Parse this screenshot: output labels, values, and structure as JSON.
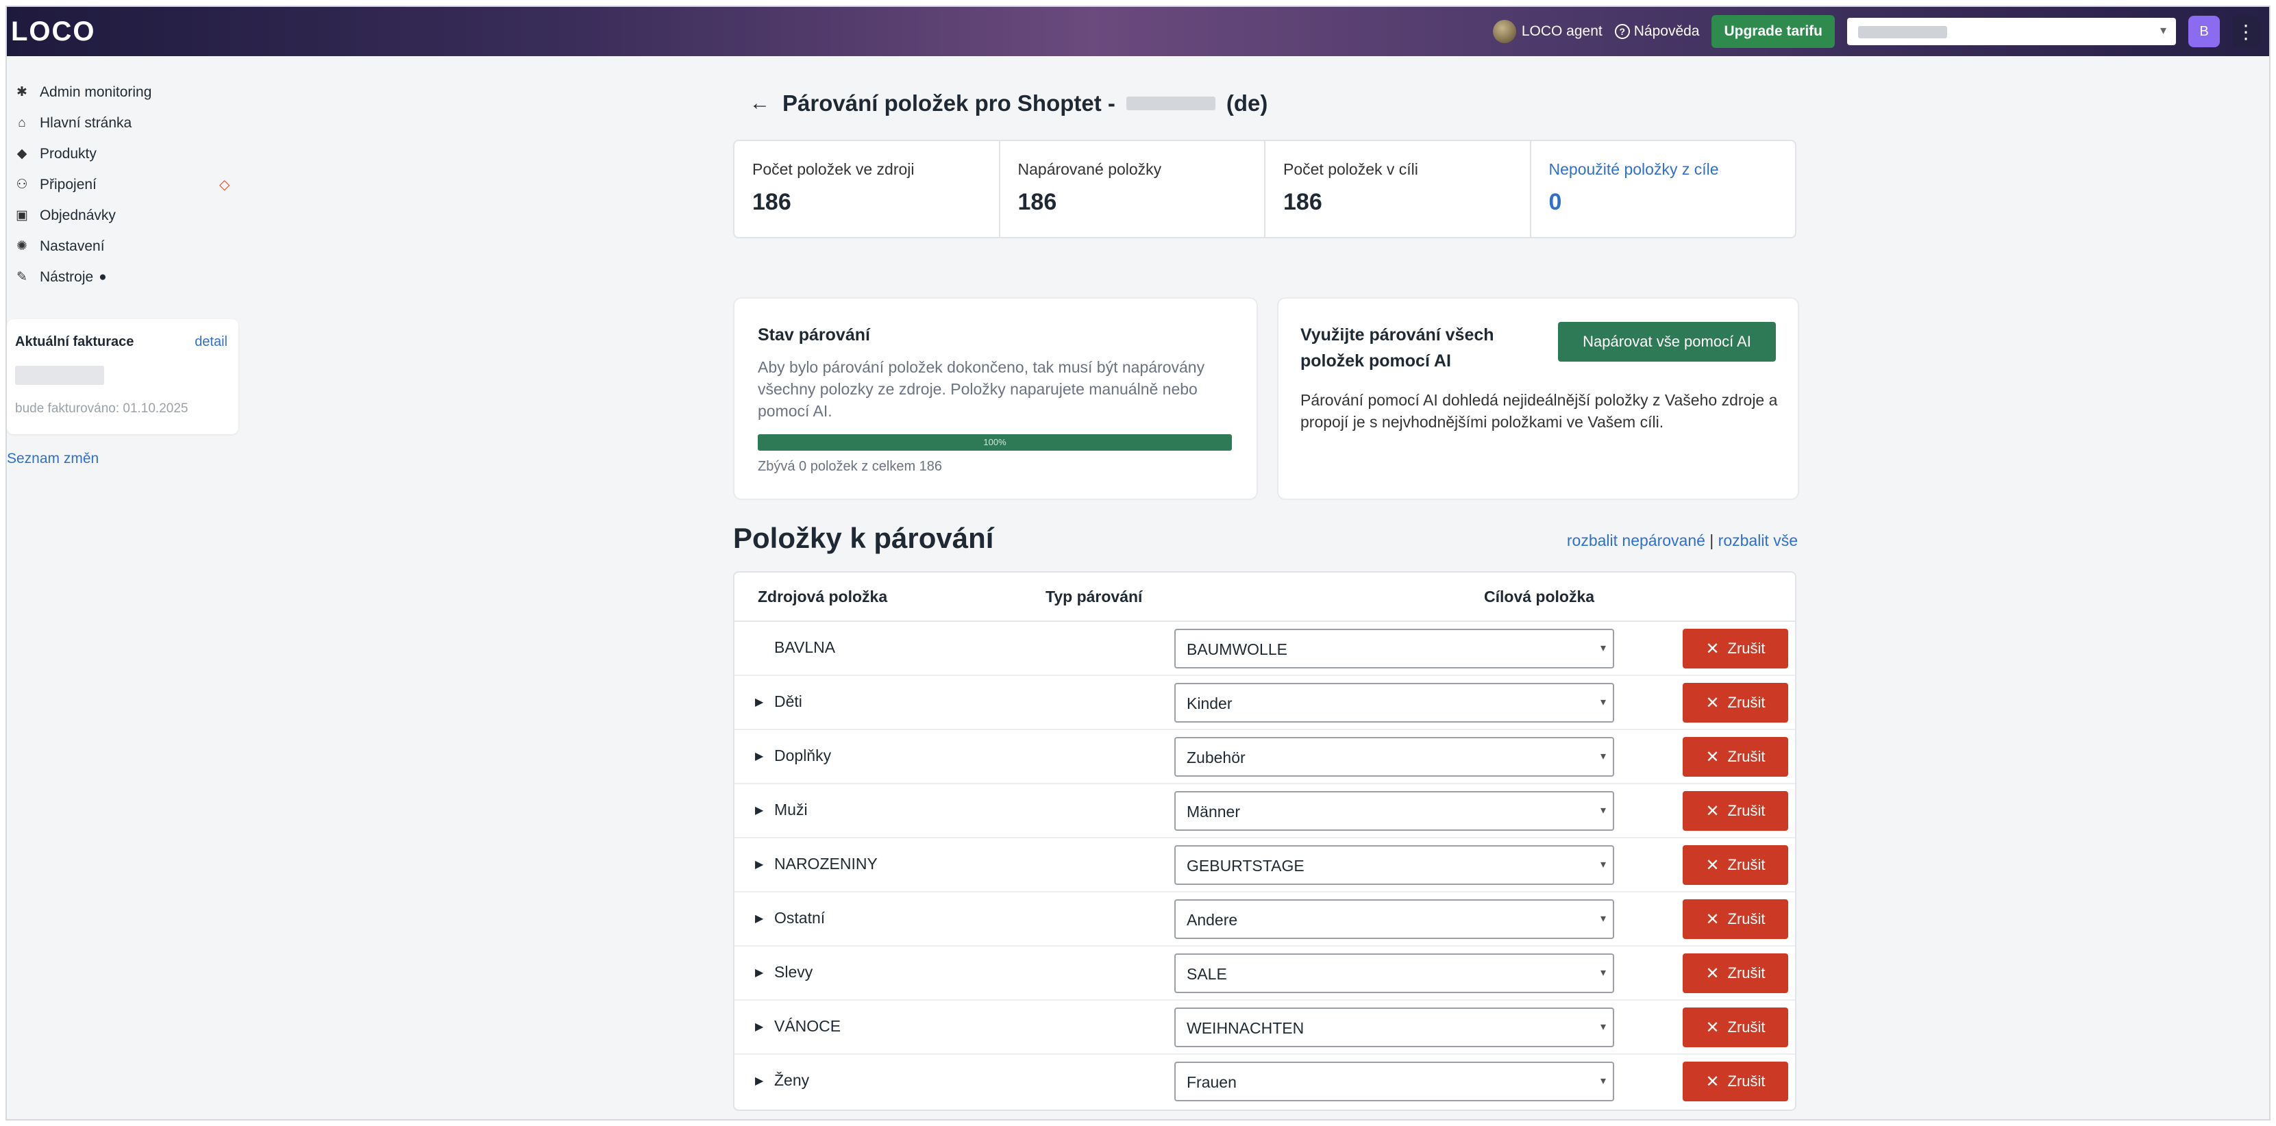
{
  "header": {
    "logo": "LOCO",
    "agent_label": "LOCO agent",
    "help_label": "Nápověda",
    "upgrade_label": "Upgrade tarifu",
    "avatar_initial": "B",
    "kebab": "⋮"
  },
  "sidebar": {
    "items": [
      {
        "label": "Admin monitoring",
        "icon": "bug-icon",
        "glyph": "✱"
      },
      {
        "label": "Hlavní stránka",
        "icon": "home-icon",
        "glyph": "⌂"
      },
      {
        "label": "Produkty",
        "icon": "tag-icon",
        "glyph": "◆"
      },
      {
        "label": "Připojení",
        "icon": "plug-icon",
        "glyph": "⚇"
      },
      {
        "label": "Objednávky",
        "icon": "inbox-icon",
        "glyph": "▣"
      },
      {
        "label": "Nastavení",
        "icon": "gear-icon",
        "glyph": "✺"
      },
      {
        "label": "Nástroje",
        "icon": "tools-icon",
        "glyph": "✎"
      }
    ],
    "billing": {
      "title": "Aktuální fakturace",
      "detail_label": "detail",
      "note": "bude fakturováno: 01.10.2025"
    },
    "changelog_label": "Seznam změn"
  },
  "main": {
    "title_prefix": "Párování položek pro Shoptet -",
    "title_suffix": "(de)",
    "back_glyph": "←",
    "stats": [
      {
        "label": "Počet položek ve zdroji",
        "value": "186"
      },
      {
        "label": "Napárované položky",
        "value": "186"
      },
      {
        "label": "Počet položek v cíli",
        "value": "186"
      },
      {
        "label": "Nepoužité položky z cíle",
        "value": "0"
      }
    ],
    "status_card": {
      "title": "Stav párování",
      "text": "Aby bylo párování položek dokončeno, tak musí být napárovány všechny polozky ze zdroje. Položky naparujete manuálně nebo pomocí AI.",
      "progress": 100,
      "progress_label": "100%",
      "note": "Zbývá 0 položek z celkem 186"
    },
    "ai_card": {
      "title": "Využijte párování všech položek pomocí AI",
      "button_label": "Napárovat vše pomocí AI",
      "text": "Párování pomocí AI dohledá nejideálnější položky z Vašeho zdroje a propojí je s nejvhodnějšími položkami ve Vašem cíli."
    },
    "items_title": "Položky k párování",
    "expand_unpaired": "rozbalit nepárované",
    "expand_separator": "|",
    "expand_all": "rozbalit vše",
    "table": {
      "col_source": "Zdrojová položka",
      "col_type": "Typ párování",
      "col_target": "Cílová položka",
      "cancel_label": "Zrušit",
      "rows": [
        {
          "source": "BAVLNA",
          "target": "BAUMWOLLE",
          "expandable": false
        },
        {
          "source": "Děti",
          "target": "Kinder",
          "expandable": true
        },
        {
          "source": "Doplňky",
          "target": "Zubehör",
          "expandable": true
        },
        {
          "source": "Muži",
          "target": "Männer",
          "expandable": true
        },
        {
          "source": "NAROZENINY",
          "target": "GEBURTSTAGE",
          "expandable": true
        },
        {
          "source": "Ostatní",
          "target": "Andere",
          "expandable": true
        },
        {
          "source": "Slevy",
          "target": "SALE",
          "expandable": true
        },
        {
          "source": "VÁNOCE",
          "target": "WEIHNACHTEN",
          "expandable": true
        },
        {
          "source": "Ženy",
          "target": "Frauen",
          "expandable": true
        }
      ]
    }
  }
}
